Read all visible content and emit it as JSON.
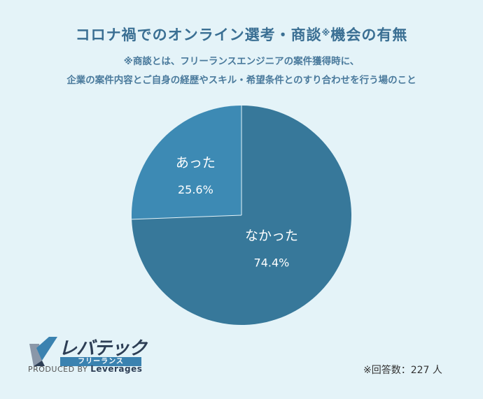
{
  "title_main": "コロナ禍でのオンライン選考・商談",
  "title_mark": "※",
  "title_tail": "機会の有無",
  "note_line1": "※商談とは、フリーランスエンジニアの案件獲得時に、",
  "note_line2": "企業の案件内容とご自身の経歴やスキル・希望条件とのすり合わせを行う場のこと",
  "respondents": "※回答数：227 人",
  "logo": {
    "name": "レバテック",
    "band": "フリーランス",
    "produced_by": "PRODUCED BY",
    "brand": "Leverages"
  },
  "colors": {
    "background": "#e4f3f8",
    "slice_nakatta": "#37789a",
    "slice_atta": "#3d8ab4",
    "title": "#3a6f93"
  },
  "chart_data": {
    "type": "pie",
    "title": "コロナ禍でのオンライン選考・商談※機会の有無",
    "slices": [
      {
        "label": "なかった",
        "value": 74.4,
        "value_label": "74.4%"
      },
      {
        "label": "あった",
        "value": 25.6,
        "value_label": "25.6%"
      }
    ],
    "start": "12 o'clock, clockwise",
    "legend": "none (labels on slices)"
  }
}
